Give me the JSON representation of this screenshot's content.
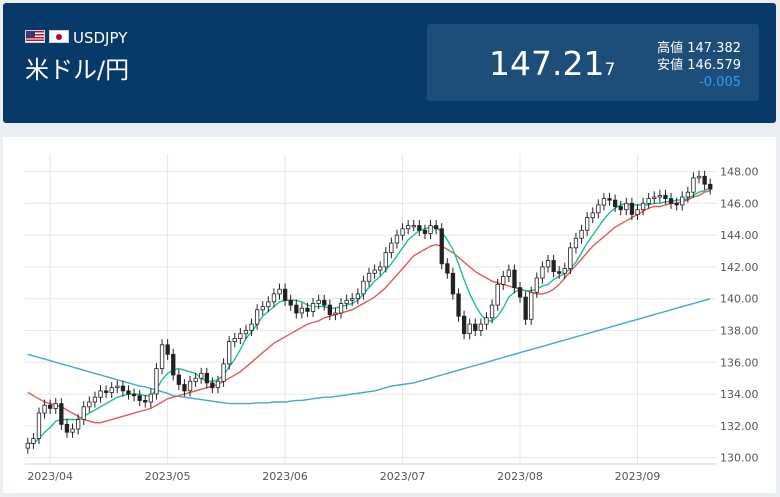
{
  "header": {
    "symbol": "USDJPY",
    "name": "米ドル/円",
    "flags": [
      "us-flag-icon",
      "jp-flag-icon"
    ],
    "price_main": "147.21",
    "price_sub": "7",
    "high_label": "高値",
    "high_value": "147.382",
    "low_label": "安値",
    "low_value": "146.579",
    "change": "-0.005",
    "colors": {
      "background": "#073a69",
      "panel": "#1d4e7a",
      "change": "#2f9bff"
    }
  },
  "chart_data": {
    "type": "candlestick",
    "ylim": [
      129.6,
      148.6
    ],
    "yticks": [
      130,
      132,
      134,
      136,
      138,
      140,
      142,
      144,
      146,
      148
    ],
    "ytick_labels": [
      "130.00",
      "132.00",
      "134.00",
      "136.00",
      "138.00",
      "140.00",
      "142.00",
      "144.00",
      "146.00",
      "148.00"
    ],
    "xlabels": [
      "2023/04",
      "2023/05",
      "2023/06",
      "2023/07",
      "2023/08",
      "2023/09"
    ],
    "xlabel_positions": [
      4.5,
      25.5,
      46.5,
      67.5,
      88.5,
      109.5
    ],
    "grid": true,
    "close": [
      130.9,
      131.2,
      132.8,
      133.3,
      133.1,
      133.4,
      132.1,
      131.6,
      131.8,
      132.4,
      133.2,
      133.5,
      133.8,
      134.2,
      134.1,
      134.4,
      134.5,
      134.2,
      134.0,
      133.9,
      133.6,
      133.5,
      134.0,
      135.6,
      137.1,
      136.5,
      135.2,
      134.6,
      134.2,
      134.8,
      135.0,
      135.3,
      134.7,
      134.4,
      134.8,
      135.9,
      137.3,
      137.5,
      137.8,
      138.0,
      138.4,
      139.3,
      139.5,
      139.8,
      140.3,
      140.6,
      139.9,
      139.6,
      139.1,
      139.4,
      139.2,
      139.7,
      139.9,
      139.6,
      139.0,
      139.1,
      139.7,
      139.9,
      140.0,
      140.3,
      141.1,
      141.6,
      141.8,
      142.0,
      142.9,
      143.5,
      144.0,
      144.4,
      144.6,
      144.6,
      144.3,
      144.1,
      144.6,
      144.4,
      142.2,
      141.6,
      140.3,
      138.9,
      137.8,
      138.4,
      138.0,
      138.4,
      138.8,
      139.6,
      140.9,
      141.4,
      141.8,
      140.7,
      140.1,
      138.7,
      140.4,
      141.3,
      142.0,
      142.4,
      141.7,
      141.6,
      141.9,
      143.2,
      143.8,
      144.3,
      145.1,
      145.4,
      145.9,
      146.3,
      146.2,
      145.8,
      145.6,
      146.0,
      145.3,
      145.6,
      146.0,
      146.3,
      146.4,
      146.5,
      146.3,
      146.0,
      145.9,
      146.4,
      146.7,
      147.6,
      147.7,
      147.2,
      146.9
    ],
    "ma_short": [
      130.9,
      130.9,
      131.2,
      131.6,
      131.9,
      132.3,
      132.4,
      132.4,
      132.4,
      132.4,
      132.6,
      132.8,
      133.0,
      133.2,
      133.4,
      133.6,
      133.8,
      133.9,
      134.0,
      134.0,
      134.0,
      133.9,
      133.9,
      134.3,
      134.9,
      135.3,
      135.5,
      135.6,
      135.5,
      135.4,
      135.3,
      135.0,
      134.8,
      134.8,
      134.9,
      135.2,
      135.7,
      136.2,
      136.8,
      137.5,
      137.9,
      138.4,
      138.9,
      139.2,
      139.5,
      139.8,
      139.9,
      139.9,
      139.9,
      139.8,
      139.6,
      139.5,
      139.5,
      139.5,
      139.4,
      139.4,
      139.5,
      139.6,
      139.7,
      139.9,
      140.3,
      140.7,
      141.1,
      141.4,
      141.8,
      142.2,
      142.7,
      143.2,
      143.7,
      144.0,
      144.3,
      144.4,
      144.5,
      144.5,
      144.2,
      143.7,
      143.1,
      142.2,
      141.2,
      140.3,
      139.6,
      139.0,
      138.6,
      138.6,
      138.9,
      139.4,
      140.1,
      140.4,
      140.6,
      140.5,
      140.5,
      140.6,
      140.8,
      140.9,
      141.2,
      141.4,
      141.6,
      141.9,
      142.3,
      142.9,
      143.5,
      144.0,
      144.5,
      145.0,
      145.4,
      145.7,
      145.9,
      146.0,
      145.9,
      145.9,
      145.9,
      145.9,
      146.0,
      146.0,
      146.1,
      146.1,
      146.2,
      146.2,
      146.3,
      146.5,
      146.7,
      146.8,
      147.0
    ],
    "ma_mid": [
      134.1,
      133.9,
      133.7,
      133.5,
      133.4,
      133.3,
      133.2,
      133.0,
      132.8,
      132.6,
      132.4,
      132.3,
      132.2,
      132.2,
      132.3,
      132.4,
      132.5,
      132.6,
      132.7,
      132.8,
      132.9,
      133.0,
      133.1,
      133.3,
      133.5,
      133.7,
      133.8,
      133.9,
      134.0,
      134.1,
      134.2,
      134.3,
      134.4,
      134.5,
      134.6,
      134.8,
      135.0,
      135.2,
      135.4,
      135.7,
      136.0,
      136.3,
      136.6,
      136.9,
      137.2,
      137.4,
      137.6,
      137.8,
      138.0,
      138.2,
      138.4,
      138.5,
      138.6,
      138.8,
      138.9,
      139.0,
      139.1,
      139.2,
      139.3,
      139.5,
      139.7,
      139.9,
      140.1,
      140.4,
      140.7,
      141.1,
      141.5,
      141.9,
      142.3,
      142.7,
      142.9,
      143.1,
      143.3,
      143.4,
      143.3,
      143.1,
      142.9,
      142.6,
      142.3,
      142.0,
      141.7,
      141.5,
      141.3,
      141.1,
      141.0,
      140.9,
      140.8,
      140.7,
      140.6,
      140.5,
      140.4,
      140.3,
      140.3,
      140.4,
      140.6,
      140.9,
      141.3,
      141.7,
      142.1,
      142.5,
      142.9,
      143.3,
      143.6,
      143.9,
      144.2,
      144.5,
      144.7,
      144.9,
      145.1,
      145.3,
      145.5,
      145.7,
      145.8,
      145.8,
      145.9,
      146.0,
      146.0,
      146.1,
      146.2,
      146.4,
      146.5,
      146.7,
      146.8
    ],
    "ma_long": [
      136.5,
      136.4,
      136.3,
      136.2,
      136.1,
      136.0,
      135.9,
      135.8,
      135.7,
      135.6,
      135.5,
      135.4,
      135.3,
      135.2,
      135.1,
      135.0,
      134.9,
      134.8,
      134.7,
      134.6,
      134.5,
      134.45,
      134.35,
      134.25,
      134.15,
      134.05,
      133.9,
      133.85,
      133.8,
      133.75,
      133.7,
      133.65,
      133.6,
      133.55,
      133.5,
      133.45,
      133.4,
      133.4,
      133.4,
      133.4,
      133.4,
      133.45,
      133.45,
      133.45,
      133.5,
      133.5,
      133.5,
      133.55,
      133.6,
      133.6,
      133.65,
      133.7,
      133.75,
      133.8,
      133.8,
      133.85,
      133.9,
      133.95,
      134.0,
      134.05,
      134.1,
      134.15,
      134.2,
      134.3,
      134.4,
      134.5,
      134.55,
      134.6,
      134.65,
      134.7,
      134.8,
      134.9,
      135.0,
      135.1,
      135.2,
      135.3,
      135.4,
      135.5,
      135.6,
      135.7,
      135.8,
      135.9,
      136.0,
      136.1,
      136.2,
      136.3,
      136.4,
      136.5,
      136.6,
      136.7,
      136.8,
      136.9,
      137.0,
      137.1,
      137.2,
      137.3,
      137.4,
      137.5,
      137.6,
      137.7,
      137.8,
      137.9,
      138.0,
      138.1,
      138.2,
      138.3,
      138.4,
      138.5,
      138.6,
      138.7,
      138.8,
      138.9,
      139.0,
      139.1,
      139.2,
      139.3,
      139.4,
      139.5,
      139.6,
      139.7,
      139.8,
      139.9,
      140.0
    ],
    "colors": {
      "candle_up": "#ffffff",
      "candle_down": "#222222",
      "ma_short": "#1bbf9a",
      "ma_mid": "#e8574f",
      "ma_long": "#42a7d6",
      "grid": "#e3e6ea"
    }
  }
}
